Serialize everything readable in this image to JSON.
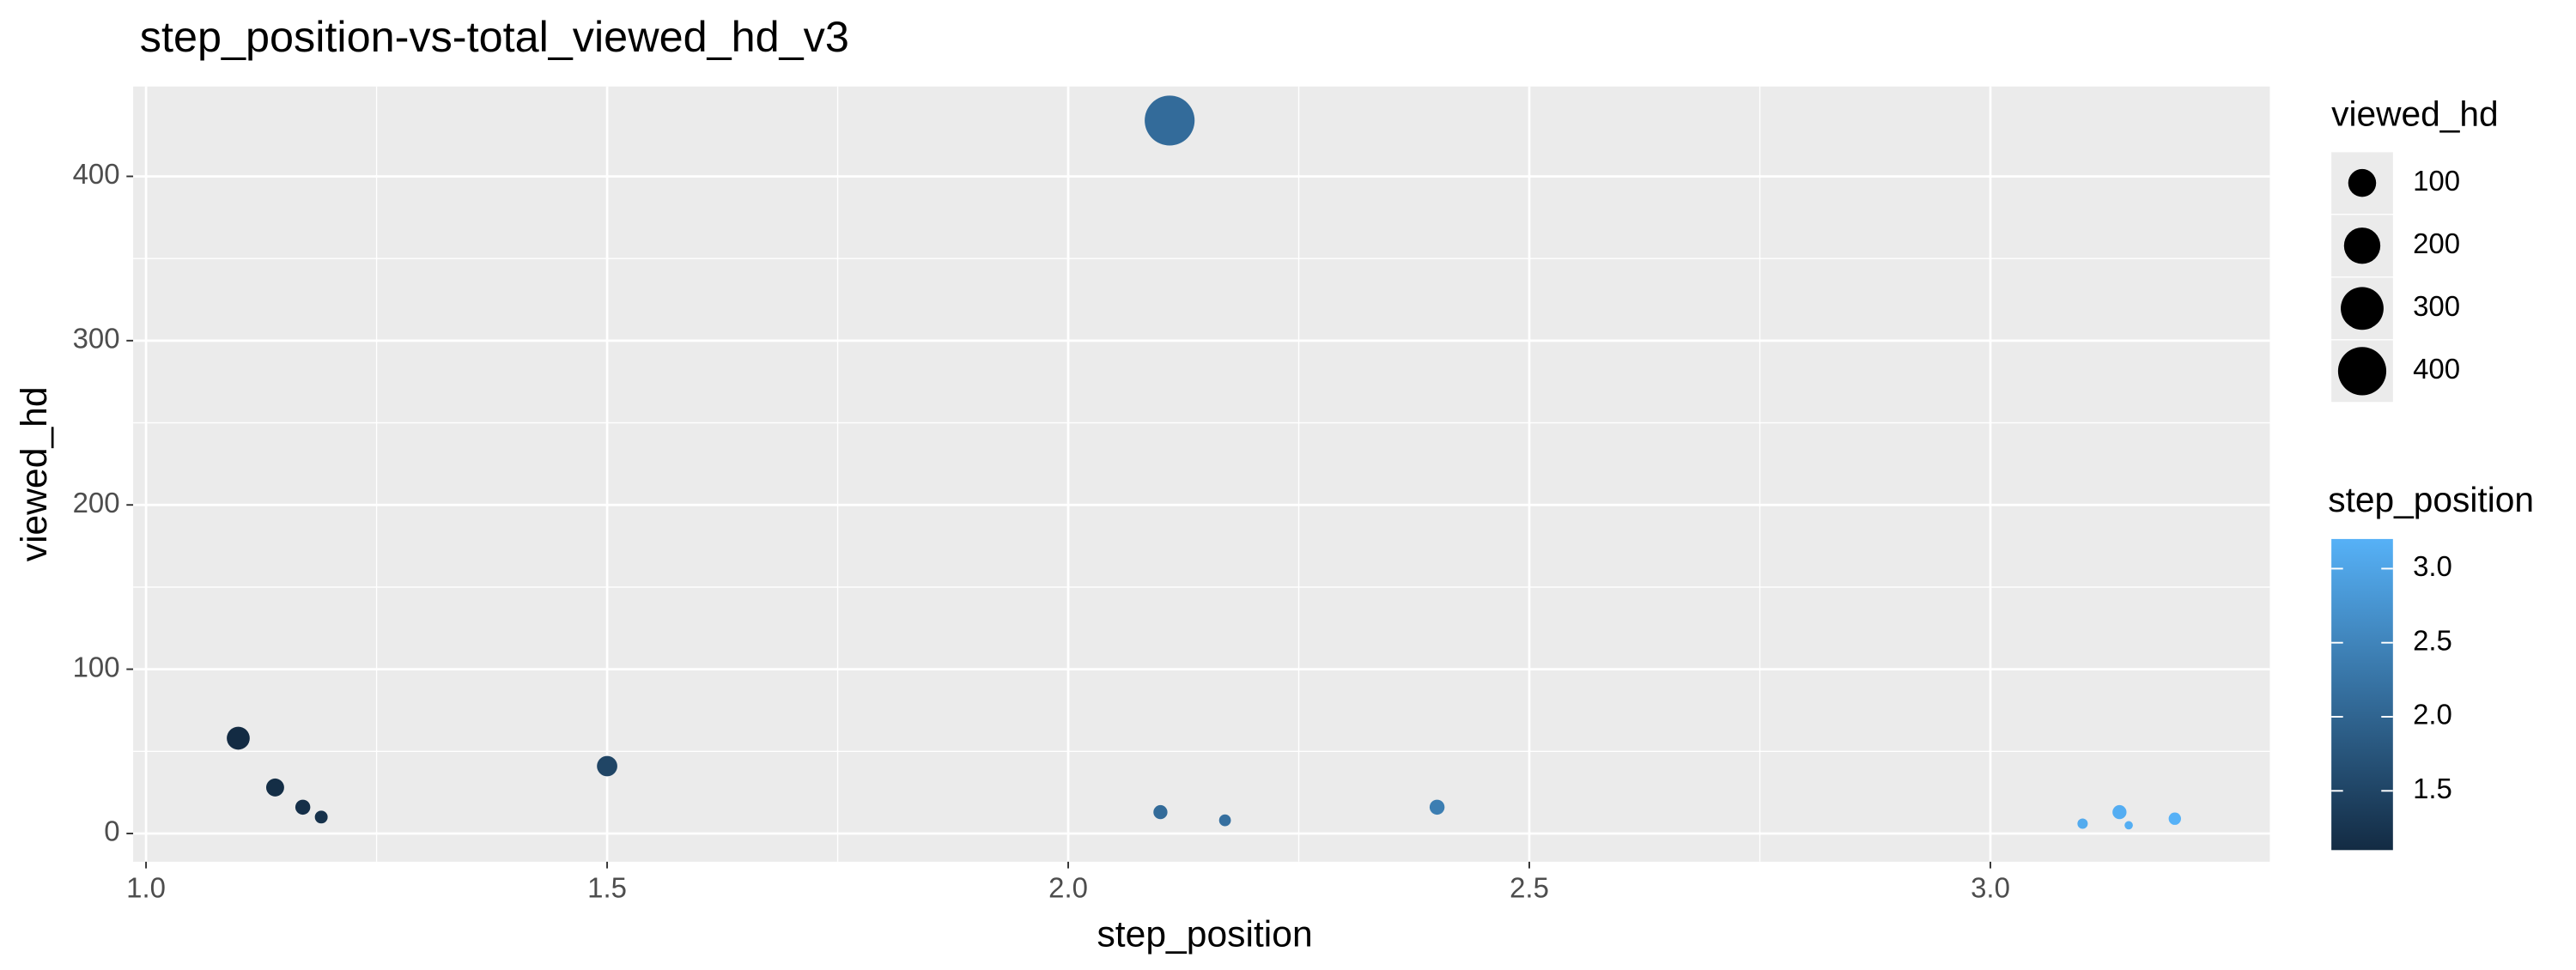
{
  "chart_data": {
    "type": "scatter",
    "title": "step_position-vs-total_viewed_hd_v3",
    "x_label": "step_position",
    "y_label": "viewed_hd",
    "x": [
      1.1,
      1.14,
      1.17,
      1.19,
      1.5,
      2.1,
      2.11,
      2.17,
      2.4,
      3.1,
      3.14,
      3.15,
      3.2
    ],
    "values": [
      58,
      28,
      16,
      10,
      41,
      13,
      434,
      8,
      16,
      6,
      13,
      5,
      9
    ],
    "xlim": [
      0.986,
      3.303
    ],
    "ylim": [
      -17.2,
      454.7
    ],
    "xticks": [
      {
        "value": 1,
        "label": "1.0"
      },
      1.5,
      {
        "value": 2,
        "label": "2.0"
      },
      2.5,
      {
        "value": 3,
        "label": "3.0"
      }
    ],
    "yticks": [
      0,
      100,
      200,
      300,
      400
    ],
    "grid": true,
    "low_color": "#132B43",
    "high_color": "#56B1F7",
    "size_legend": {
      "title": "viewed_hd",
      "breaks": [
        100,
        200,
        300,
        400
      ]
    },
    "color_legend": {
      "title": "step_position",
      "ticks": [
        1.5,
        {
          "value": 2,
          "label": "2.0"
        },
        2.5,
        {
          "value": 3,
          "label": "3.0"
        }
      ]
    }
  }
}
